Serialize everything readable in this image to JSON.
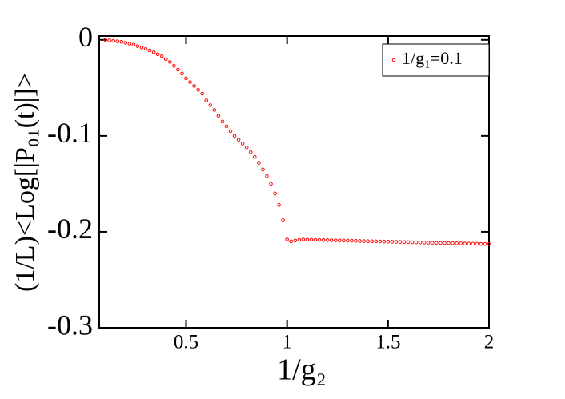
{
  "chart_data": {
    "type": "scatter",
    "xlabel": "1/g₂",
    "ylabel": "(1/L)<Log[|P₀₁(t)|]>",
    "xlim": [
      0.07,
      2
    ],
    "ylim": [
      -0.3,
      0.004
    ],
    "xticks": [
      0.5,
      1,
      1.5,
      2
    ],
    "yticks": [
      0,
      -0.1,
      -0.2,
      -0.3
    ],
    "legend": "upper right",
    "series": [
      {
        "name": "1/g₁=0.1",
        "color": "#ff0000",
        "x": [
          0.1,
          0.12,
          0.14,
          0.16,
          0.18,
          0.2,
          0.22,
          0.24,
          0.26,
          0.28,
          0.3,
          0.32,
          0.34,
          0.36,
          0.38,
          0.4,
          0.42,
          0.44,
          0.46,
          0.48,
          0.5,
          0.52,
          0.54,
          0.56,
          0.58,
          0.6,
          0.62,
          0.64,
          0.66,
          0.68,
          0.7,
          0.72,
          0.74,
          0.76,
          0.78,
          0.8,
          0.82,
          0.84,
          0.86,
          0.88,
          0.9,
          0.92,
          0.94,
          0.96,
          0.98,
          1.0,
          1.02,
          1.04,
          1.06,
          1.08,
          1.1,
          1.12,
          1.14,
          1.16,
          1.18,
          1.2,
          1.22,
          1.24,
          1.26,
          1.28,
          1.3,
          1.32,
          1.34,
          1.36,
          1.38,
          1.4,
          1.42,
          1.44,
          1.46,
          1.48,
          1.5,
          1.52,
          1.54,
          1.56,
          1.58,
          1.6,
          1.62,
          1.64,
          1.66,
          1.68,
          1.7,
          1.72,
          1.74,
          1.76,
          1.78,
          1.8,
          1.82,
          1.84,
          1.86,
          1.88,
          1.9,
          1.92,
          1.94,
          1.96,
          1.98,
          2.0
        ],
        "values": [
          0,
          -0.0005,
          -0.001,
          -0.0015,
          -0.002,
          -0.003,
          -0.004,
          -0.005,
          -0.0065,
          -0.008,
          -0.0095,
          -0.011,
          -0.013,
          -0.015,
          -0.017,
          -0.02,
          -0.023,
          -0.027,
          -0.031,
          -0.035,
          -0.04,
          -0.044,
          -0.048,
          -0.052,
          -0.056,
          -0.063,
          -0.068,
          -0.073,
          -0.079,
          -0.085,
          -0.09,
          -0.095,
          -0.1,
          -0.104,
          -0.108,
          -0.112,
          -0.117,
          -0.122,
          -0.128,
          -0.135,
          -0.142,
          -0.15,
          -0.16,
          -0.172,
          -0.188,
          -0.208,
          -0.21,
          -0.209,
          -0.2085,
          -0.208,
          -0.2082,
          -0.2083,
          -0.2084,
          -0.2085,
          -0.2086,
          -0.2087,
          -0.2088,
          -0.2089,
          -0.209,
          -0.2091,
          -0.2092,
          -0.2093,
          -0.2094,
          -0.2096,
          -0.2097,
          -0.2098,
          -0.2099,
          -0.21,
          -0.2101,
          -0.2102,
          -0.2103,
          -0.2104,
          -0.2105,
          -0.2106,
          -0.2107,
          -0.2108,
          -0.2109,
          -0.211,
          -0.2111,
          -0.2112,
          -0.2113,
          -0.2114,
          -0.2115,
          -0.2116,
          -0.2117,
          -0.2118,
          -0.2119,
          -0.212,
          -0.2121,
          -0.2122,
          -0.2123,
          -0.2124,
          -0.2125,
          -0.2126,
          -0.2127,
          -0.2128
        ]
      }
    ]
  }
}
